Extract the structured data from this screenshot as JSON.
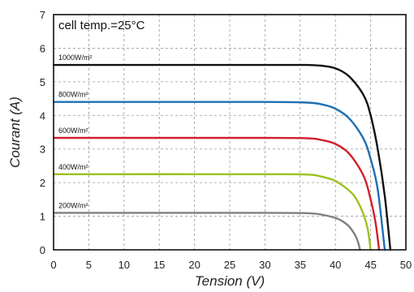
{
  "chart_data": {
    "type": "line",
    "annotation": "cell temp.=25°C",
    "xlabel": "Tension (V)",
    "ylabel": "Courant (A)",
    "xlim": [
      0,
      50
    ],
    "ylim": [
      0,
      7
    ],
    "xticks": [
      0,
      5,
      10,
      15,
      20,
      25,
      30,
      35,
      40,
      45,
      50
    ],
    "yticks": [
      0,
      1,
      2,
      3,
      4,
      5,
      6,
      7
    ],
    "grid": true,
    "series": [
      {
        "name": "1000W/m²",
        "color": "#111111",
        "isc": 5.5,
        "voc": 47.8,
        "points": [
          [
            0,
            5.5
          ],
          [
            30,
            5.5
          ],
          [
            36,
            5.5
          ],
          [
            38,
            5.48
          ],
          [
            40,
            5.4
          ],
          [
            42,
            5.15
          ],
          [
            44,
            4.6
          ],
          [
            45,
            4.0
          ],
          [
            46,
            3.0
          ],
          [
            47,
            1.6
          ],
          [
            47.8,
            0
          ]
        ]
      },
      {
        "name": "800W/m²",
        "color": "#1f6fb2",
        "isc": 4.4,
        "voc": 47.0,
        "points": [
          [
            0,
            4.4
          ],
          [
            30,
            4.4
          ],
          [
            36,
            4.38
          ],
          [
            38,
            4.33
          ],
          [
            40,
            4.2
          ],
          [
            42,
            3.9
          ],
          [
            44,
            3.3
          ],
          [
            45,
            2.7
          ],
          [
            46,
            1.8
          ],
          [
            47,
            0
          ]
        ]
      },
      {
        "name": "600W/m²",
        "color": "#d0202a",
        "isc": 3.33,
        "voc": 46.2,
        "points": [
          [
            0,
            3.33
          ],
          [
            30,
            3.33
          ],
          [
            36,
            3.32
          ],
          [
            38,
            3.27
          ],
          [
            40,
            3.15
          ],
          [
            42,
            2.85
          ],
          [
            44,
            2.2
          ],
          [
            45,
            1.5
          ],
          [
            45.7,
            0.8
          ],
          [
            46.2,
            0
          ]
        ]
      },
      {
        "name": "400W/m²",
        "color": "#9bc21d",
        "isc": 2.25,
        "voc": 45.0,
        "points": [
          [
            0,
            2.25
          ],
          [
            30,
            2.25
          ],
          [
            36,
            2.24
          ],
          [
            38,
            2.18
          ],
          [
            40,
            2.05
          ],
          [
            42,
            1.75
          ],
          [
            43,
            1.5
          ],
          [
            44,
            1.05
          ],
          [
            44.6,
            0.6
          ],
          [
            45,
            0
          ]
        ]
      },
      {
        "name": "200W/m²",
        "color": "#7f7f7f",
        "isc": 1.1,
        "voc": 43.5,
        "points": [
          [
            0,
            1.1
          ],
          [
            30,
            1.1
          ],
          [
            36,
            1.09
          ],
          [
            38,
            1.05
          ],
          [
            40,
            0.95
          ],
          [
            41,
            0.85
          ],
          [
            42,
            0.68
          ],
          [
            43,
            0.35
          ],
          [
            43.5,
            0
          ]
        ]
      }
    ]
  }
}
